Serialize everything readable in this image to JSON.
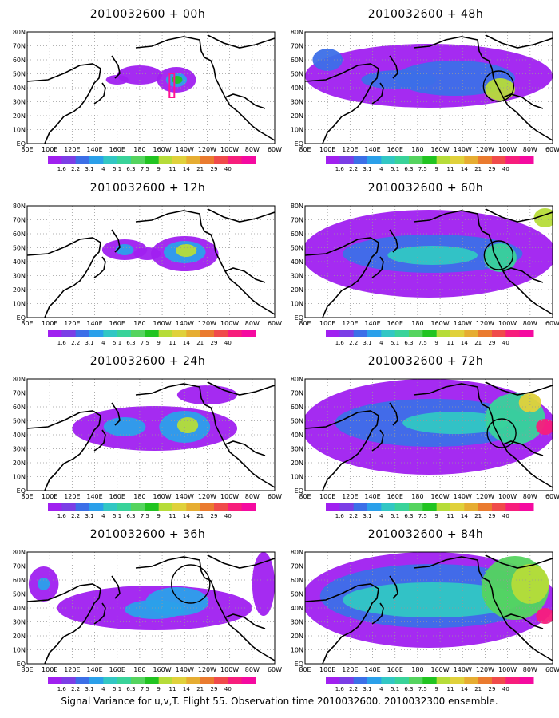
{
  "legend": {
    "values": [
      "1.6",
      "2.2",
      "3.1",
      "4",
      "5.1",
      "6.3",
      "7.5",
      "9",
      "11",
      "14",
      "21",
      "29",
      "40"
    ],
    "colors": [
      "#a020f0",
      "#7b3ee6",
      "#3c6fe8",
      "#2ba0ea",
      "#32c7c4",
      "#39d39a",
      "#55d45f",
      "#21c421",
      "#b6dc39",
      "#e0d13b",
      "#e6ad32",
      "#ea7b2f",
      "#f04b4b",
      "#f71e7c",
      "#f50aa0"
    ]
  },
  "axes": {
    "lon_labels": [
      "80E",
      "100E",
      "120E",
      "140E",
      "160E",
      "180",
      "160W",
      "140W",
      "120W",
      "100W",
      "80W",
      "60W"
    ],
    "lat_labels": [
      "EQ",
      "10N",
      "20N",
      "30N",
      "40N",
      "50N",
      "60N",
      "70N",
      "80N"
    ],
    "lon_range": [
      80,
      300
    ],
    "lat_range": [
      0,
      80
    ]
  },
  "panels": [
    {
      "title": "2010032600 + 00h",
      "blobs": [
        {
          "cx": 199,
          "cy": 60,
          "rx": 26,
          "ry": 16,
          "level": 0
        },
        {
          "cx": 199,
          "cy": 60,
          "rx": 14,
          "ry": 9,
          "level": 3
        },
        {
          "cx": 200,
          "cy": 60,
          "rx": 7,
          "ry": 5,
          "level": 7
        },
        {
          "cx": 150,
          "cy": 54,
          "rx": 30,
          "ry": 12,
          "level": 0
        },
        {
          "cx": 120,
          "cy": 60,
          "rx": 15,
          "ry": 6,
          "level": 0
        }
      ],
      "marker": {
        "x": 193,
        "y": 58
      }
    },
    {
      "title": "2010032600 + 12h",
      "blobs": [
        {
          "cx": 210,
          "cy": 60,
          "rx": 45,
          "ry": 22,
          "level": 0
        },
        {
          "cx": 210,
          "cy": 58,
          "rx": 28,
          "ry": 14,
          "level": 3
        },
        {
          "cx": 212,
          "cy": 56,
          "rx": 14,
          "ry": 8,
          "level": 8
        },
        {
          "cx": 130,
          "cy": 55,
          "rx": 30,
          "ry": 13,
          "level": 0
        },
        {
          "cx": 130,
          "cy": 55,
          "rx": 12,
          "ry": 7,
          "level": 3
        },
        {
          "cx": 160,
          "cy": 60,
          "rx": 18,
          "ry": 8,
          "level": 0
        }
      ]
    },
    {
      "title": "2010032600 + 24h",
      "blobs": [
        {
          "cx": 170,
          "cy": 62,
          "rx": 110,
          "ry": 28,
          "level": 0
        },
        {
          "cx": 210,
          "cy": 60,
          "rx": 34,
          "ry": 20,
          "level": 3
        },
        {
          "cx": 214,
          "cy": 58,
          "rx": 14,
          "ry": 10,
          "level": 8
        },
        {
          "cx": 130,
          "cy": 60,
          "rx": 28,
          "ry": 12,
          "level": 3
        },
        {
          "cx": 240,
          "cy": 20,
          "rx": 40,
          "ry": 12,
          "level": 0
        }
      ]
    },
    {
      "title": "2010032600 + 36h",
      "blobs": [
        {
          "cx": 170,
          "cy": 70,
          "rx": 130,
          "ry": 28,
          "level": 0
        },
        {
          "cx": 200,
          "cy": 62,
          "rx": 42,
          "ry": 18,
          "level": 3
        },
        {
          "cx": 170,
          "cy": 72,
          "rx": 40,
          "ry": 12,
          "level": 3
        },
        {
          "cx": 22,
          "cy": 40,
          "rx": 20,
          "ry": 22,
          "level": 0
        },
        {
          "cx": 22,
          "cy": 40,
          "rx": 8,
          "ry": 8,
          "level": 3
        },
        {
          "cx": 315,
          "cy": 40,
          "rx": 15,
          "ry": 40,
          "level": 0
        }
      ],
      "circle": {
        "cx": 218,
        "cy": 40,
        "r": 24
      }
    },
    {
      "title": "2010032600 + 48h",
      "blobs": [
        {
          "cx": 165,
          "cy": 55,
          "rx": 165,
          "ry": 40,
          "level": 0
        },
        {
          "cx": 200,
          "cy": 58,
          "rx": 80,
          "ry": 22,
          "level": 2
        },
        {
          "cx": 260,
          "cy": 72,
          "rx": 20,
          "ry": 14,
          "level": 8
        },
        {
          "cx": 125,
          "cy": 60,
          "rx": 50,
          "ry": 12,
          "level": 2
        },
        {
          "cx": 30,
          "cy": 35,
          "rx": 20,
          "ry": 14,
          "level": 2
        }
      ],
      "circle": {
        "cx": 258,
        "cy": 68,
        "r": 19
      }
    },
    {
      "title": "2010032600 + 60h",
      "blobs": [
        {
          "cx": 165,
          "cy": 60,
          "rx": 170,
          "ry": 55,
          "level": 0
        },
        {
          "cx": 170,
          "cy": 60,
          "rx": 120,
          "ry": 24,
          "level": 2
        },
        {
          "cx": 170,
          "cy": 62,
          "rx": 60,
          "ry": 12,
          "level": 4
        },
        {
          "cx": 260,
          "cy": 65,
          "rx": 22,
          "ry": 18,
          "level": 5
        },
        {
          "cx": 320,
          "cy": 15,
          "rx": 15,
          "ry": 12,
          "level": 8
        }
      ],
      "circle": {
        "cx": 258,
        "cy": 62,
        "r": 18
      }
    },
    {
      "title": "2010032600 + 72h",
      "blobs": [
        {
          "cx": 165,
          "cy": 60,
          "rx": 170,
          "ry": 60,
          "level": 0
        },
        {
          "cx": 170,
          "cy": 55,
          "rx": 130,
          "ry": 30,
          "level": 2
        },
        {
          "cx": 200,
          "cy": 55,
          "rx": 70,
          "ry": 14,
          "level": 4
        },
        {
          "cx": 280,
          "cy": 50,
          "rx": 40,
          "ry": 32,
          "level": 5
        },
        {
          "cx": 300,
          "cy": 30,
          "rx": 15,
          "ry": 12,
          "level": 9
        },
        {
          "cx": 320,
          "cy": 60,
          "rx": 12,
          "ry": 10,
          "level": 13
        }
      ],
      "circle": {
        "cx": 262,
        "cy": 68,
        "r": 18
      }
    },
    {
      "title": "2010032600 + 84h",
      "blobs": [
        {
          "cx": 165,
          "cy": 60,
          "rx": 170,
          "ry": 60,
          "level": 0
        },
        {
          "cx": 170,
          "cy": 55,
          "rx": 150,
          "ry": 40,
          "level": 2
        },
        {
          "cx": 170,
          "cy": 60,
          "rx": 120,
          "ry": 22,
          "level": 4
        },
        {
          "cx": 280,
          "cy": 45,
          "rx": 45,
          "ry": 40,
          "level": 6
        },
        {
          "cx": 300,
          "cy": 40,
          "rx": 25,
          "ry": 25,
          "level": 8
        },
        {
          "cx": 320,
          "cy": 80,
          "rx": 12,
          "ry": 10,
          "level": 13
        }
      ]
    }
  ],
  "footer": "Signal Variance for u,v,T. Flight 55. Observation time 2010032600. 2010032300 ensemble."
}
